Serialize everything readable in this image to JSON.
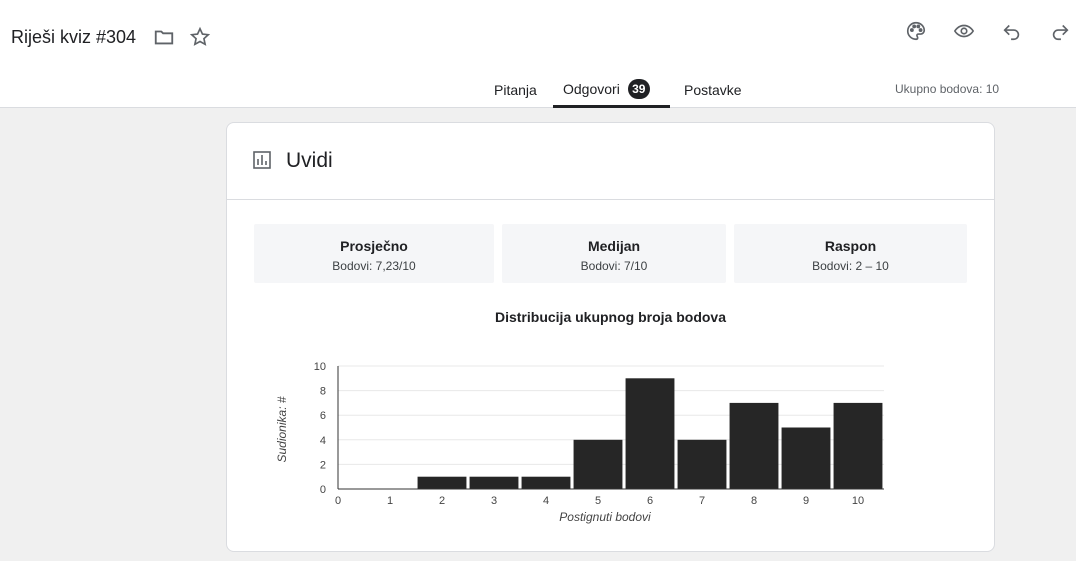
{
  "header": {
    "title": "Riješi kviz #304",
    "icons": [
      "folder-icon",
      "star-icon",
      "palette-icon",
      "eye-icon",
      "undo-icon",
      "redo-icon"
    ]
  },
  "tabs": [
    {
      "label": "Pitanja"
    },
    {
      "label": "Odgovori",
      "badge": "39"
    },
    {
      "label": "Postavke"
    }
  ],
  "total_points": "Ukupno bodova: 10",
  "insights": {
    "title": "Uvidi",
    "stats": [
      {
        "label": "Prosječno",
        "value": "Bodovi: 7,23/10"
      },
      {
        "label": "Medijan",
        "value": "Bodovi: 7/10"
      },
      {
        "label": "Raspon",
        "value": "Bodovi: 2 – 10"
      }
    ]
  },
  "chart_data": {
    "type": "bar",
    "title": "Distribucija ukupnog broja bodova",
    "xlabel": "Postignuti bodovi",
    "ylabel": "Sudionika: #",
    "categories": [
      "0",
      "1",
      "2",
      "3",
      "4",
      "5",
      "6",
      "7",
      "8",
      "9",
      "10"
    ],
    "values": [
      0,
      0,
      1,
      1,
      1,
      4,
      9,
      4,
      7,
      5,
      7
    ],
    "ylim": [
      0,
      10
    ],
    "yticks": [
      0,
      2,
      4,
      6,
      8,
      10
    ],
    "bar_color": "#262626",
    "grid": true
  }
}
